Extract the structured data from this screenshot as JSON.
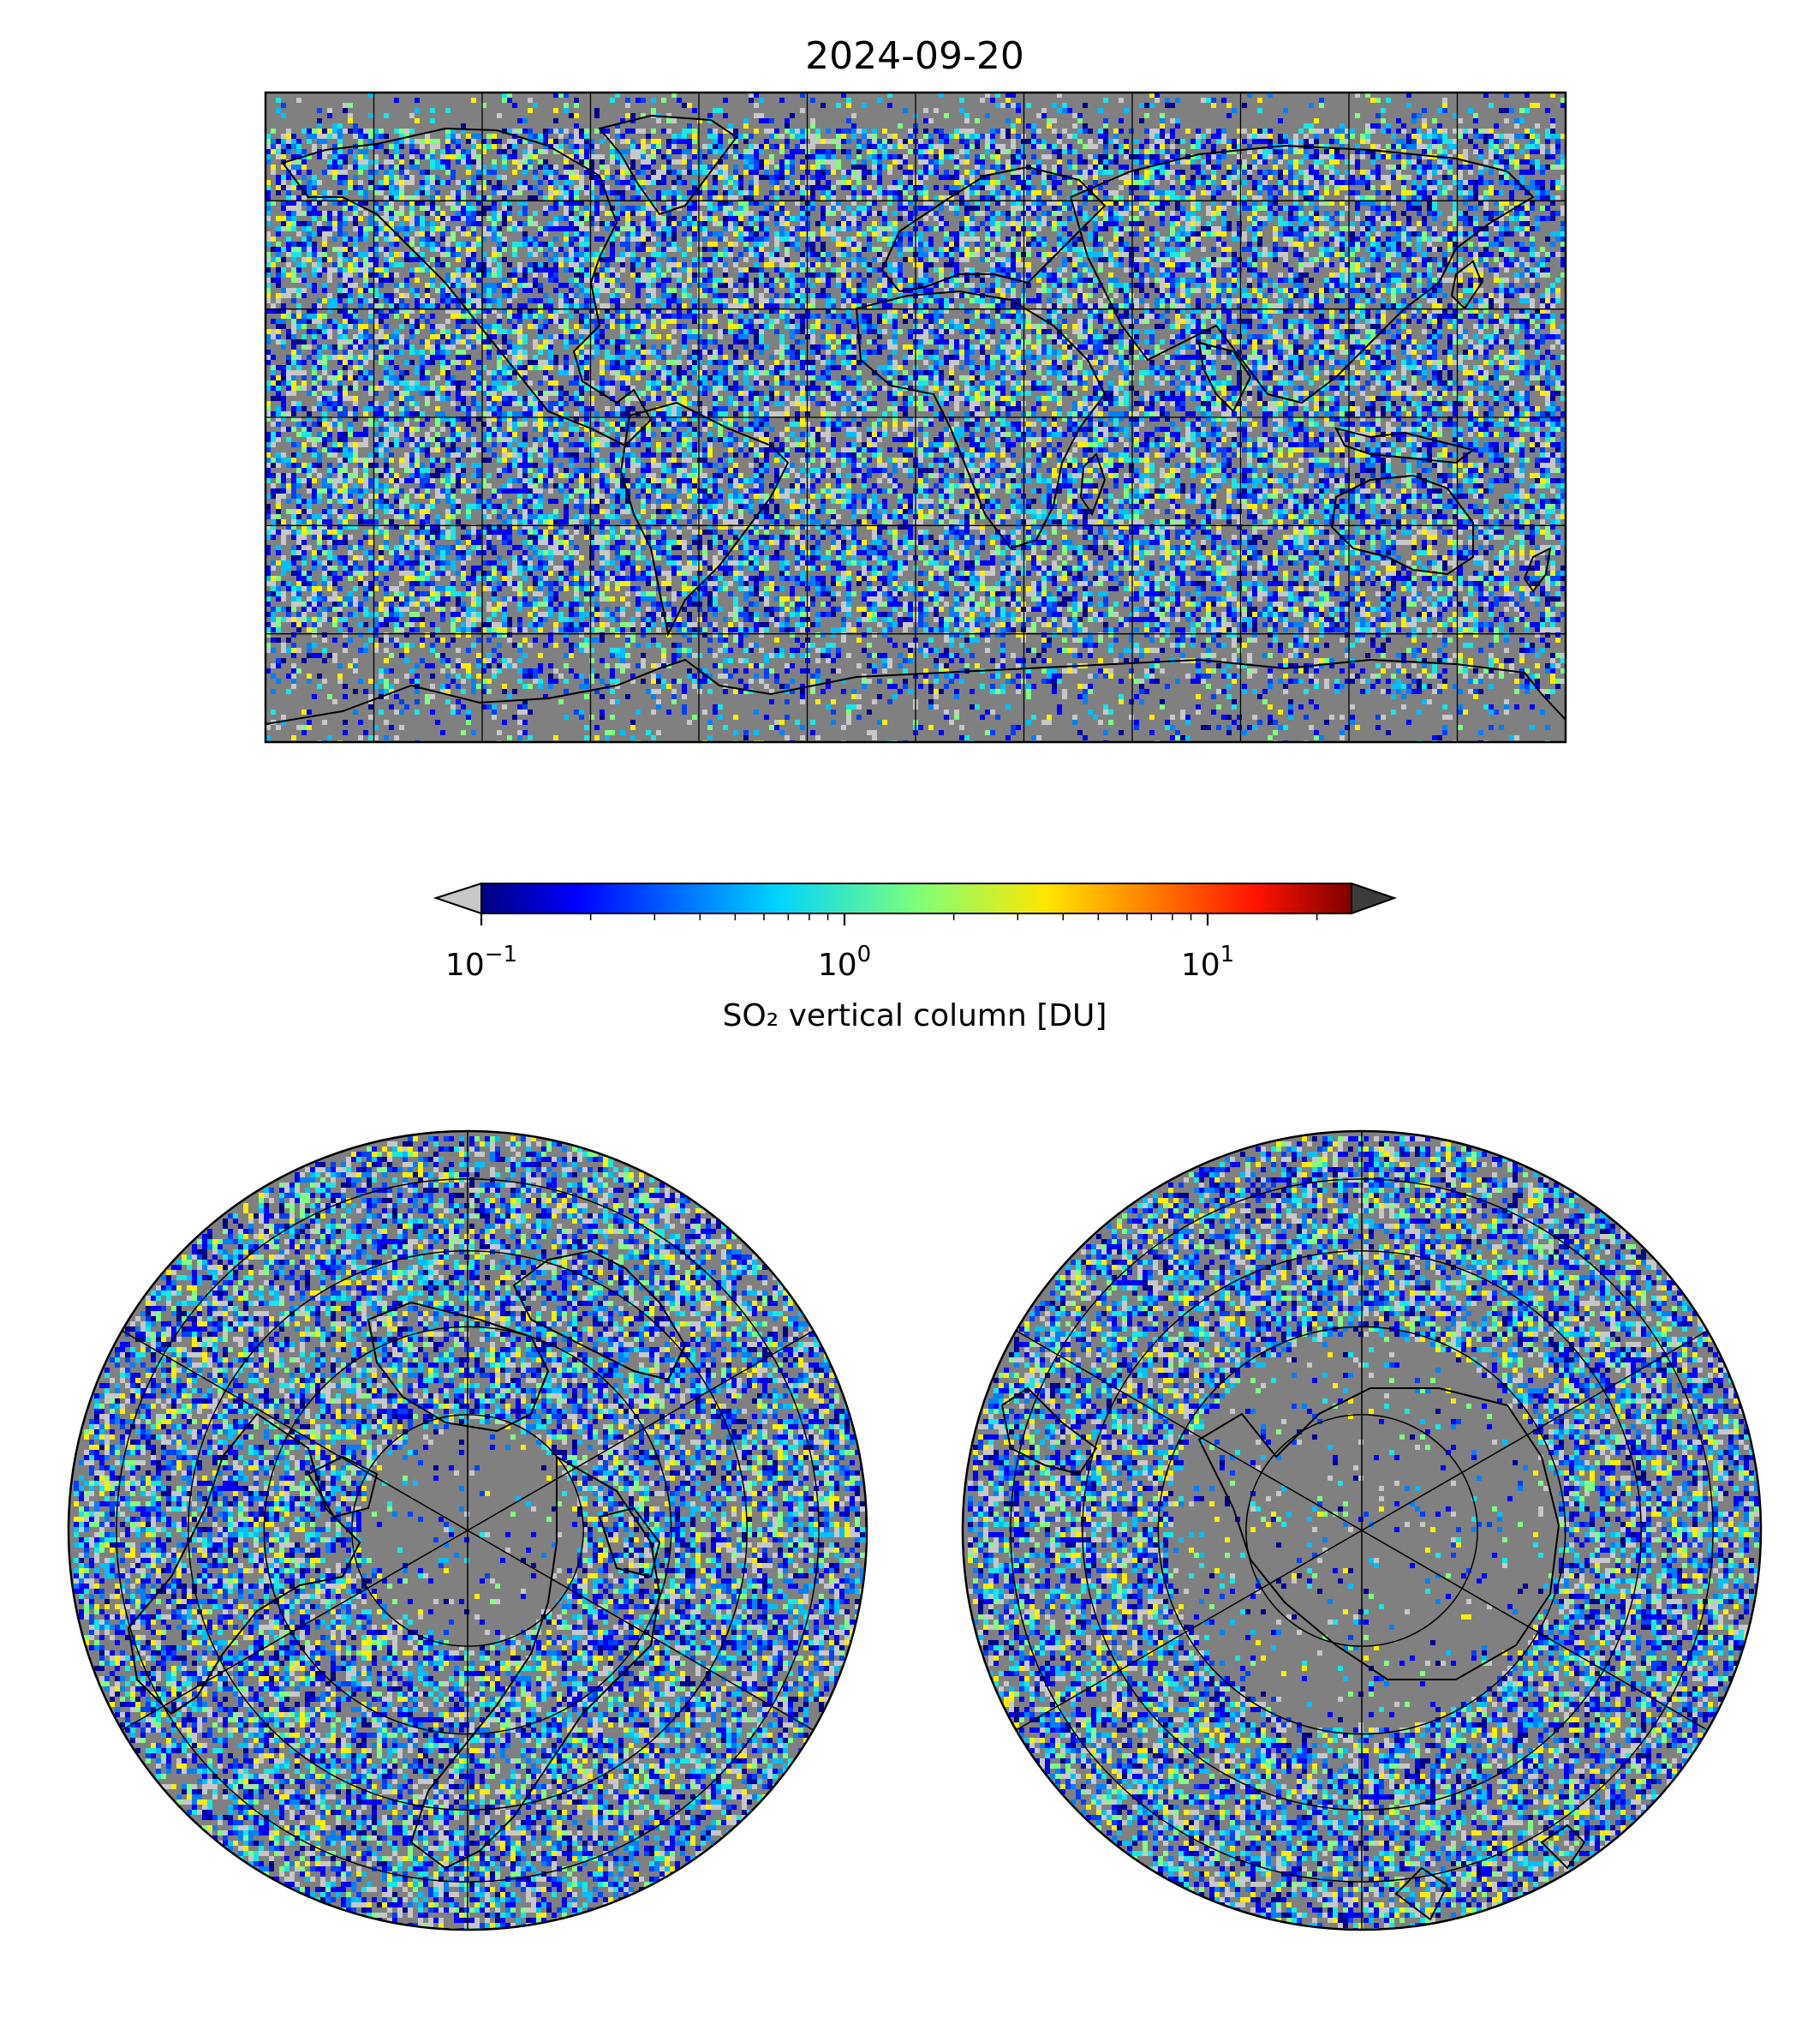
{
  "figure": {
    "title": "2024-09-20"
  },
  "colorbar": {
    "label": "SO₂ vertical column [DU]",
    "scale": "log",
    "range": [
      0.1,
      25
    ],
    "colormap": "jet",
    "under_color": "#c8c8c8",
    "over_color": "#3c3c3c",
    "ticks": [
      {
        "base": "10",
        "exp": "−1",
        "value": 0.1
      },
      {
        "base": "10",
        "exp": "0",
        "value": 1
      },
      {
        "base": "10",
        "exp": "1",
        "value": 10
      }
    ]
  },
  "maps": {
    "global": {
      "projection": "plate-carree",
      "gridlines": "every 30°",
      "background": "#808080"
    },
    "north_polar": {
      "projection": "north-polar-stereographic",
      "gridlines": "circles and 6 meridians",
      "background": "#808080"
    },
    "south_polar": {
      "projection": "south-polar-stereographic",
      "gridlines": "circles and 6 meridians",
      "background": "#808080"
    }
  }
}
